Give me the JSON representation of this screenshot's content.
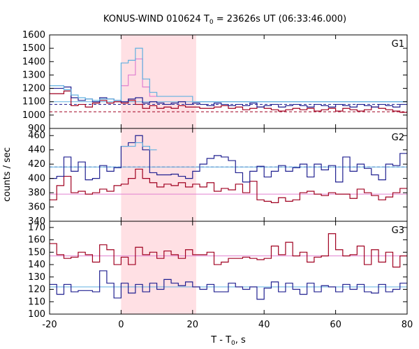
{
  "colors": {
    "red": "#a00020",
    "blue": "#202090",
    "pink": "#e080d0",
    "cyan": "#60b0e0",
    "shade": "#ffe0e4"
  },
  "chart_data": {
    "type": "line",
    "title": {
      "prefix": "KONUS-WIND 010624 T",
      "sub": "0",
      "suffix": " = 23626s UT (06:33:46.000)"
    },
    "xlabel": {
      "prefix": "T - T",
      "sub": "0",
      "suffix": ", s"
    },
    "ylabel": "counts / sec",
    "x_range": [
      -20,
      80
    ],
    "x_ticks": [
      -20,
      0,
      20,
      40,
      60,
      80
    ],
    "x_tick_labels": [
      "-20",
      "0",
      "20",
      "40",
      "60",
      "80"
    ],
    "highlight_interval": [
      0,
      21
    ],
    "panels": [
      {
        "label": "G1",
        "y_range": [
          900,
          1600
        ],
        "y_ticks": [
          900,
          1000,
          1100,
          1200,
          1300,
          1400,
          1500,
          1600
        ],
        "y_tick_labels": [
          "900",
          "1000",
          "1100",
          "1200",
          "1300",
          "1400",
          "1500",
          "1600"
        ],
        "series": [
          {
            "color_key": "red",
            "step": 2,
            "x0": -20,
            "values": [
              1160,
              1160,
              1180,
              1070,
              1080,
              1060,
              1090,
              1110,
              1090,
              1100,
              1090,
              1110,
              1080,
              1050,
              1070,
              1050,
              1060,
              1050,
              1070,
              1060,
              1060,
              1050,
              1050,
              1060,
              1070,
              1050,
              1060,
              1040,
              1050,
              1060,
              1050,
              1040,
              1030,
              1040,
              1050,
              1040,
              1050,
              1030,
              1040,
              1050,
              1030,
              1050,
              1040,
              1030,
              1040,
              1060,
              1050,
              1040,
              1030,
              1020
            ]
          },
          {
            "color_key": "blue",
            "step": 2,
            "x0": -20,
            "values": [
              1200,
              1200,
              1210,
              1130,
              1110,
              1120,
              1100,
              1130,
              1120,
              1110,
              1100,
              1120,
              1130,
              1090,
              1100,
              1090,
              1080,
              1090,
              1100,
              1080,
              1090,
              1080,
              1070,
              1090,
              1080,
              1070,
              1080,
              1070,
              1090,
              1060,
              1070,
              1080,
              1060,
              1070,
              1080,
              1070,
              1060,
              1080,
              1070,
              1060,
              1080,
              1070,
              1060,
              1080,
              1070,
              1060,
              1080,
              1070,
              1060,
              1080
            ]
          },
          {
            "color_key": "pink",
            "step": 2,
            "x0": 0,
            "values": [
              1220,
              1300,
              1420,
              1210,
              1140
            ]
          },
          {
            "color_key": "cyan",
            "step": 2,
            "x0": -20,
            "values": [
              1220,
              1220,
              1190,
              1150,
              1130,
              1120,
              1110,
              1120,
              1120,
              1110,
              1390,
              1410,
              1500,
              1270,
              1170,
              1140,
              1140,
              1140,
              1140,
              1140,
              1100,
              1100,
              1100,
              1100,
              1100,
              1100,
              1100,
              1100,
              1100,
              1100,
              1100,
              1100,
              1100,
              1100,
              1100,
              1100,
              1100,
              1100,
              1100,
              1100,
              1100,
              1100,
              1100,
              1100,
              1100,
              1100,
              1100,
              1100,
              1100,
              1100
            ]
          }
        ],
        "baselines": [
          {
            "color_key": "red",
            "y": 1025,
            "dashed": true
          },
          {
            "color_key": "blue",
            "y": 1080,
            "dashed": true
          },
          {
            "color_key": "cyan",
            "y": 1100,
            "dashed": false
          }
        ]
      },
      {
        "label": "G2",
        "y_range": [
          340,
          470
        ],
        "y_ticks": [
          340,
          360,
          380,
          400,
          420,
          440,
          460
        ],
        "y_tick_labels": [
          "340",
          "360",
          "380",
          "400",
          "420",
          "440",
          "460"
        ],
        "series": [
          {
            "color_key": "red",
            "step": 2,
            "x0": -20,
            "values": [
              370,
              390,
              403,
              380,
              382,
              378,
              380,
              385,
              382,
              390,
              392,
              400,
              413,
              400,
              394,
              388,
              392,
              390,
              394,
              388,
              392,
              388,
              394,
              382,
              386,
              384,
              392,
              380,
              396,
              370,
              368,
              366,
              373,
              368,
              370,
              380,
              382,
              378,
              376,
              380,
              378,
              378,
              372,
              385,
              380,
              376,
              370,
              374,
              380,
              386
            ]
          },
          {
            "color_key": "blue",
            "step": 2,
            "x0": -20,
            "values": [
              400,
              403,
              430,
              410,
              423,
              398,
              400,
              418,
              410,
              415,
              445,
              450,
              460,
              440,
              408,
              405,
              405,
              406,
              403,
              400,
              410,
              420,
              428,
              432,
              430,
              425,
              408,
              395,
              410,
              417,
              402,
              410,
              418,
              410,
              415,
              420,
              402,
              420,
              412,
              418,
              395,
              430,
              410,
              420,
              414,
              405,
              398,
              420,
              418,
              435
            ]
          },
          {
            "color_key": "cyan",
            "step": 2,
            "x0": 0,
            "values": [
              445,
              445,
              450,
              445,
              440
            ]
          }
        ],
        "baselines": [
          {
            "color_key": "pink",
            "y": 378,
            "dashed": false
          },
          {
            "color_key": "blue",
            "y": 416,
            "dashed": true
          },
          {
            "color_key": "cyan",
            "y": 416,
            "dashed": false
          }
        ]
      },
      {
        "label": "G3",
        "y_range": [
          100,
          175
        ],
        "y_ticks": [
          100,
          110,
          120,
          130,
          140,
          150,
          160,
          170
        ],
        "y_tick_labels": [
          "100",
          "110",
          "120",
          "130",
          "140",
          "150",
          "160",
          "170"
        ],
        "series": [
          {
            "color_key": "red",
            "step": 2,
            "x0": -20,
            "values": [
              157,
              148,
              145,
              146,
              150,
              148,
              142,
              156,
              152,
              140,
              146,
              140,
              154,
              148,
              150,
              145,
              151,
              148,
              145,
              152,
              148,
              148,
              150,
              140,
              142,
              145,
              145,
              146,
              145,
              144,
              145,
              155,
              148,
              158,
              147,
              150,
              142,
              146,
              147,
              165,
              152,
              147,
              148,
              155,
              140,
              152,
              142,
              150,
              138,
              147
            ]
          },
          {
            "color_key": "blue",
            "step": 2,
            "x0": -20,
            "values": [
              124,
              116,
              124,
              118,
              119,
              119,
              118,
              135,
              125,
              113,
              125,
              117,
              124,
              118,
              125,
              120,
              128,
              125,
              123,
              126,
              122,
              120,
              124,
              118,
              118,
              125,
              122,
              120,
              122,
              112,
              121,
              126,
              118,
              125,
              120,
              116,
              125,
              118,
              123,
              122,
              118,
              124,
              120,
              124,
              118,
              117,
              124,
              118,
              120,
              125
            ]
          }
        ],
        "baselines": [
          {
            "color_key": "pink",
            "y": 147,
            "dashed": false
          },
          {
            "color_key": "cyan",
            "y": 122,
            "dashed": false
          }
        ]
      }
    ]
  }
}
